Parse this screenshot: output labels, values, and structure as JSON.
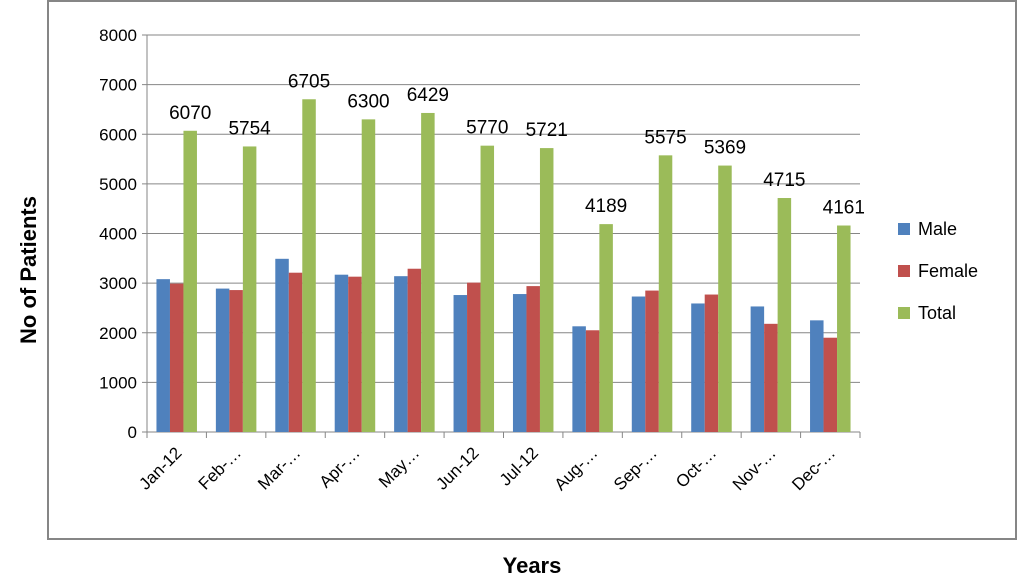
{
  "chart_data": {
    "type": "bar",
    "categories": [
      "Jan-12",
      "Feb-…",
      "Mar-…",
      "Apr-…",
      "May…",
      "Jun-12",
      "Jul-12",
      "Aug-…",
      "Sep-…",
      "Oct-…",
      "Nov-…",
      "Dec-…"
    ],
    "series": [
      {
        "name": "Male",
        "color": "#4F81BD",
        "values": [
          3080,
          2890,
          3490,
          3170,
          3140,
          2760,
          2780,
          2130,
          2730,
          2590,
          2530,
          2250
        ]
      },
      {
        "name": "Female",
        "color": "#C0504D",
        "values": [
          2990,
          2860,
          3210,
          3130,
          3290,
          3010,
          2940,
          2050,
          2850,
          2770,
          2180,
          1900
        ]
      },
      {
        "name": "Total",
        "color": "#9BBB59",
        "values": [
          6070,
          5754,
          6705,
          6300,
          6429,
          5770,
          5721,
          4189,
          5575,
          5369,
          4715,
          4161
        ]
      }
    ],
    "data_labels_series": "Total",
    "xlabel": "Years",
    "ylabel": "No of Patients",
    "ylim": [
      0,
      8000
    ],
    "yticks": [
      0,
      1000,
      2000,
      3000,
      4000,
      5000,
      6000,
      7000,
      8000
    ],
    "grid": true,
    "legend_position": "right"
  }
}
